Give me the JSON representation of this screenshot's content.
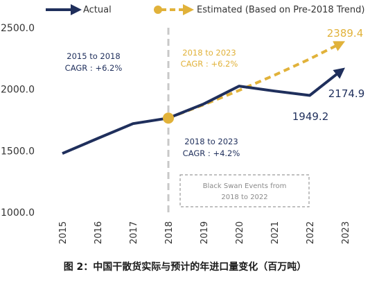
{
  "colors": {
    "actual": "#1f2f5c",
    "estimated": "#e1b23a",
    "divider": "#c8c8c8",
    "note_border": "#9a9a9a"
  },
  "legend": {
    "actual_label": "Actual",
    "estimated_label": "Estimated (Based on Pre-2018 Trend)"
  },
  "annotations": {
    "cagr_2015_2018": [
      "2015 to 2018",
      "CAGR : +6.2%"
    ],
    "cagr_est_2018_2023": [
      "2018 to 2023",
      "CAGR : +6.2%"
    ],
    "cagr_actual_2018_2023": [
      "2018 to 2023",
      "CAGR : +4.2%"
    ],
    "black_swan": [
      "Black Swan Events from",
      "2018 to 2022"
    ]
  },
  "data_labels": {
    "est_2023": "2389.4",
    "actual_2022": "1949.2",
    "actual_2023": "2174.9"
  },
  "caption": "图 2：中国干散货实际与预计的年进口量变化（百万吨）",
  "chart_data": {
    "type": "line",
    "x": [
      "2015",
      "2016",
      "2017",
      "2018",
      "2019",
      "2020",
      "2021",
      "2022",
      "2023"
    ],
    "ylim": [
      1000,
      2600
    ],
    "yticks": [
      "1000.0",
      "1500.0",
      "2000.0",
      "2500.0"
    ],
    "ytick_values": [
      1000,
      1500,
      2000,
      2500
    ],
    "series": [
      {
        "name": "Actual",
        "values": [
          1478,
          1600,
          1720,
          1765,
          1880,
          2025,
          1985,
          1949.2,
          2174.9
        ]
      },
      {
        "name": "Estimated (Based on Pre-2018 Trend)",
        "values": [
          null,
          null,
          null,
          1765,
          1874,
          1990,
          2113,
          2245,
          2389.4
        ]
      }
    ],
    "xlabel": "",
    "ylabel": "",
    "legend_position": "top-left",
    "grid": false
  }
}
